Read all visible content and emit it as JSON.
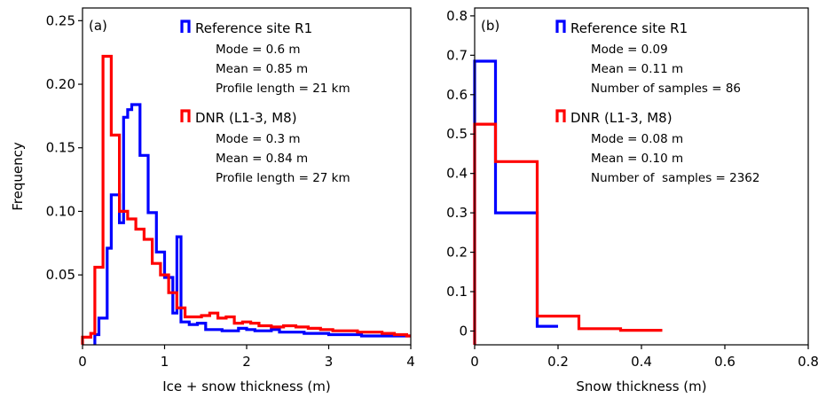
{
  "chart_data": [
    {
      "type": "step",
      "panel_label": "(a)",
      "xlabel": "Ice + snow thickness (m)",
      "ylabel": "Frequency",
      "xlim": [
        0,
        4
      ],
      "ylim": [
        -0.005,
        0.26
      ],
      "xticks": [
        "0",
        "1",
        "2",
        "3",
        "4"
      ],
      "yticks": [
        "0.05",
        "0.10",
        "0.15",
        "0.20",
        "0.25"
      ],
      "legend_position": "top-right",
      "series": [
        {
          "name": "Reference site R1",
          "color": "#0000ff",
          "stats": [
            "Mode = 0.6 m",
            "Mean = 0.85 m",
            "Profile length = 21 km"
          ],
          "x": [
            0.15,
            0.2,
            0.3,
            0.35,
            0.45,
            0.5,
            0.55,
            0.6,
            0.7,
            0.8,
            0.9,
            1.0,
            1.1,
            1.15,
            1.2,
            1.3,
            1.4,
            1.5,
            1.6,
            1.7,
            1.8,
            1.9,
            2.0,
            2.1,
            2.2,
            2.3,
            2.4,
            2.5,
            2.6,
            2.7,
            2.8,
            2.9,
            3.0,
            3.1,
            3.2,
            3.3,
            3.4,
            3.5,
            3.6,
            3.7
          ],
          "y": [
            0.003,
            0.016,
            0.071,
            0.113,
            0.091,
            0.174,
            0.18,
            0.184,
            0.144,
            0.099,
            0.068,
            0.048,
            0.02,
            0.08,
            0.013,
            0.011,
            0.012,
            0.007,
            0.007,
            0.006,
            0.006,
            0.008,
            0.007,
            0.006,
            0.006,
            0.007,
            0.005,
            0.005,
            0.005,
            0.004,
            0.004,
            0.004,
            0.003,
            0.003,
            0.003,
            0.003,
            0.002,
            0.002,
            0.002,
            0.002
          ]
        },
        {
          "name": "DNR (L1-3, M8)",
          "color": "#ff0000",
          "stats": [
            "Mode = 0.3 m",
            "Mean = 0.84 m",
            "Profile length = 27 km"
          ],
          "x": [
            0.0,
            0.1,
            0.15,
            0.25,
            0.35,
            0.45,
            0.55,
            0.65,
            0.75,
            0.85,
            0.95,
            1.05,
            1.15,
            1.25,
            1.35,
            1.45,
            1.55,
            1.65,
            1.75,
            1.85,
            1.95,
            2.05,
            2.15,
            2.3,
            2.45,
            2.6,
            2.75,
            2.9,
            3.05,
            3.2,
            3.35,
            3.5,
            3.65,
            3.8,
            3.95
          ],
          "y": [
            0.001,
            0.004,
            0.056,
            0.222,
            0.16,
            0.1,
            0.094,
            0.086,
            0.078,
            0.059,
            0.05,
            0.036,
            0.024,
            0.017,
            0.017,
            0.018,
            0.02,
            0.016,
            0.017,
            0.012,
            0.013,
            0.012,
            0.01,
            0.009,
            0.01,
            0.009,
            0.008,
            0.007,
            0.006,
            0.006,
            0.005,
            0.005,
            0.004,
            0.003,
            0.002
          ]
        }
      ]
    },
    {
      "type": "step",
      "panel_label": "(b)",
      "xlabel": "Snow thickness (m)",
      "ylabel": "",
      "xlim": [
        0,
        0.8
      ],
      "ylim": [
        -0.035,
        0.82
      ],
      "xticks": [
        "0",
        "0.2",
        "0.4",
        "0.6",
        "0.8"
      ],
      "yticks": [
        "0",
        "0.1",
        "0.2",
        "0.3",
        "0.4",
        "0.5",
        "0.6",
        "0.7",
        "0.8"
      ],
      "legend_position": "top-right",
      "series": [
        {
          "name": "Reference site R1",
          "color": "#0000ff",
          "stats": [
            "Mode = 0.09",
            "Mean = 0.11 m",
            "Number of samples = 86"
          ],
          "x": [
            0.0,
            0.05,
            0.15
          ],
          "y": [
            0.685,
            0.3,
            0.012
          ],
          "end": 0.2
        },
        {
          "name": "DNR (L1-3, M8)",
          "color": "#ff0000",
          "stats": [
            "Mode = 0.08 m",
            "Mean = 0.10 m",
            "Number of  samples = 2362"
          ],
          "x": [
            0.0,
            0.05,
            0.15,
            0.25,
            0.35
          ],
          "y": [
            0.525,
            0.43,
            0.038,
            0.006,
            0.002
          ],
          "end": 0.45
        }
      ]
    }
  ]
}
